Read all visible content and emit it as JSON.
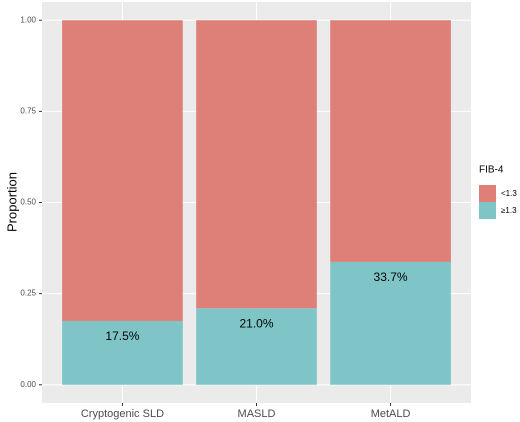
{
  "chart_data": {
    "type": "stacked_bar",
    "y_label": "Proportion",
    "categories": [
      "Cryptogenic SLD",
      "MASLD",
      "MetALD"
    ],
    "series": [
      {
        "name": "<1.3",
        "color": "#df8078",
        "values": [
          0.825,
          0.79,
          0.663
        ]
      },
      {
        "name": "≥1.3",
        "color": "#7fc5c8",
        "values": [
          0.175,
          0.21,
          0.337
        ],
        "value_labels": [
          "17.5%",
          "21.0%",
          "33.7%"
        ]
      }
    ],
    "ylim": [
      -0.05,
      1.05
    ],
    "yticks": [
      {
        "value": 0,
        "label": "0.00"
      },
      {
        "value": 0.25,
        "label": "0.25"
      },
      {
        "value": 0.5,
        "label": "0.50"
      },
      {
        "value": 0.75,
        "label": "0.75"
      },
      {
        "value": 1,
        "label": "1.00"
      }
    ],
    "grid": true,
    "legend_title": "FIB-4",
    "legend_position": "right"
  }
}
